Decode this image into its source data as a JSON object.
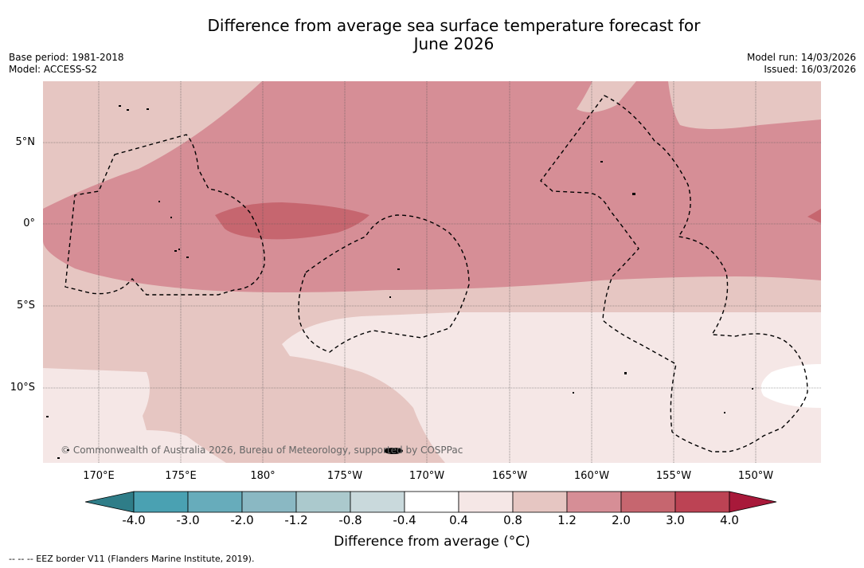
{
  "title": {
    "line1": "Difference from average sea surface temperature forecast for",
    "line2": "June 2026"
  },
  "meta_left": {
    "base_period": "Base period: 1981-2018",
    "model": "Model: ACCESS-S2"
  },
  "meta_right": {
    "model_run": "Model run: 14/03/2026",
    "issued": "Issued: 16/03/2026"
  },
  "map": {
    "lon_labels": [
      "170°E",
      "175°E",
      "180°",
      "175°W",
      "170°W",
      "165°W",
      "160°W",
      "155°W",
      "150°W"
    ],
    "lat_labels": [
      "5°N",
      "0°",
      "5°S",
      "10°S"
    ],
    "copyright": "© Commonwealth of Australia 2026, Bureau of Meteorology, supported by COSPPac"
  },
  "colorbar": {
    "ticks": [
      "-4.0",
      "-3.0",
      "-2.0",
      "-1.2",
      "-0.8",
      "-0.4",
      "0.4",
      "0.8",
      "1.2",
      "2.0",
      "3.0",
      "4.0"
    ],
    "colors": [
      "#2f7d88",
      "#4aa1b2",
      "#67acbb",
      "#8ab8c3",
      "#abc9cd",
      "#c9d9dc",
      "#ffffff",
      "#f5e7e6",
      "#e6c6c2",
      "#d68e96",
      "#c6666f",
      "#bc4354",
      "#a8193a"
    ],
    "label": "Difference from average (°C)"
  },
  "footnote": "--  --  -- EEZ border V11 (Flanders Marine Institute, 2019)."
}
